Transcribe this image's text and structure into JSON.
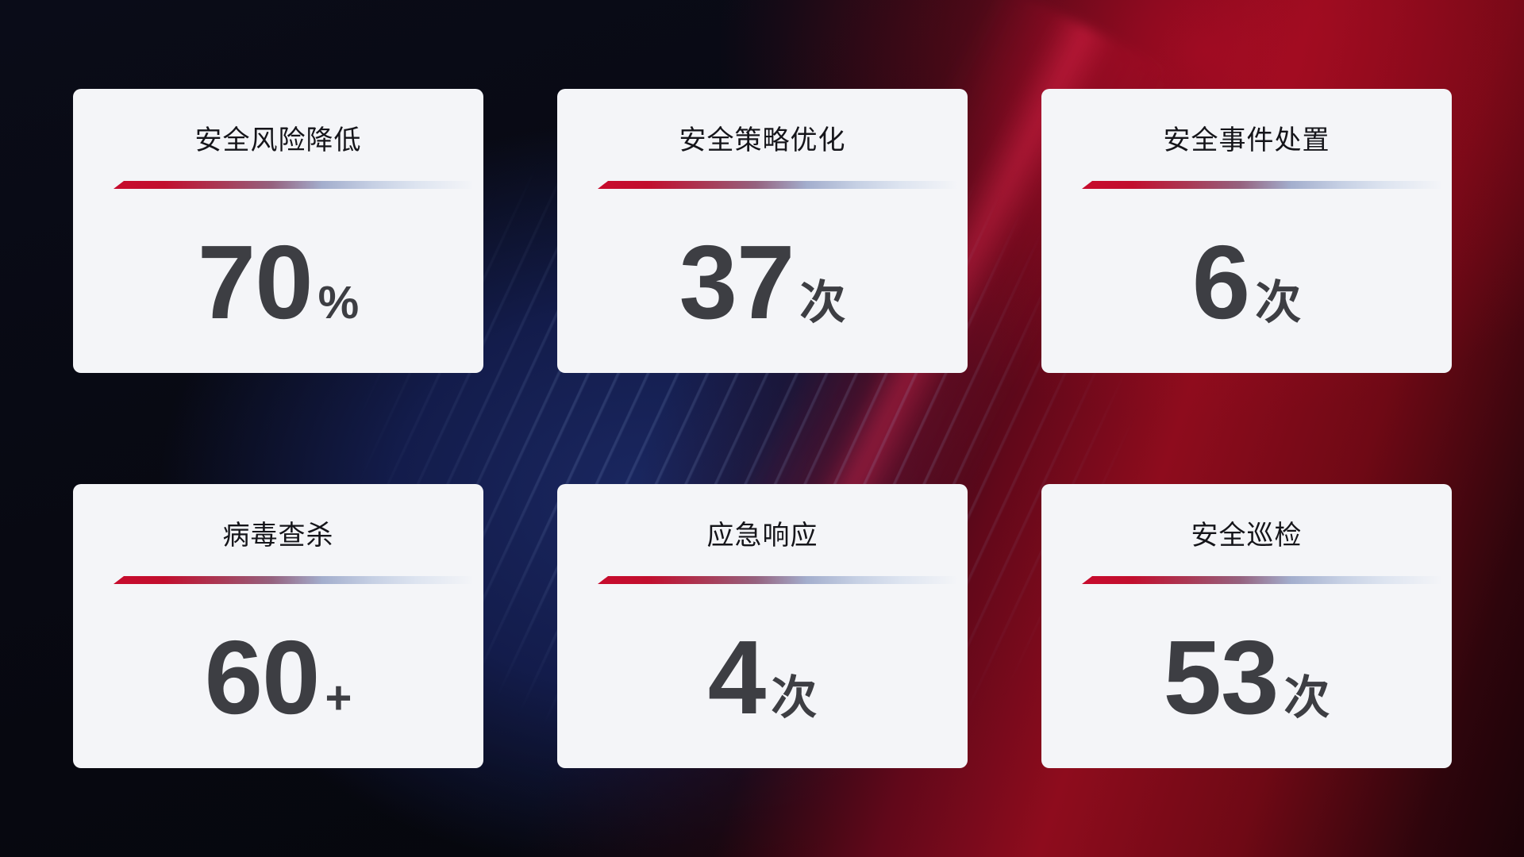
{
  "cards": [
    {
      "title": "安全风险降低",
      "value": "70",
      "unit": "%"
    },
    {
      "title": "安全策略优化",
      "value": "37",
      "unit": "次"
    },
    {
      "title": "安全事件处置",
      "value": "6",
      "unit": "次"
    },
    {
      "title": "病毒查杀",
      "value": "60",
      "unit": "+"
    },
    {
      "title": "应急响应",
      "value": "4",
      "unit": "次"
    },
    {
      "title": "安全巡检",
      "value": "53",
      "unit": "次"
    }
  ],
  "colors": {
    "card_background": "#f4f5f8",
    "title_text": "#15151a",
    "value_text": "#3d3e43",
    "divider_red": "#c70b2d",
    "divider_blue": "#c6d0e4",
    "background_dark": "#07080f",
    "background_blue_glow": "#1a2760",
    "background_red": "#8e0c1d"
  }
}
